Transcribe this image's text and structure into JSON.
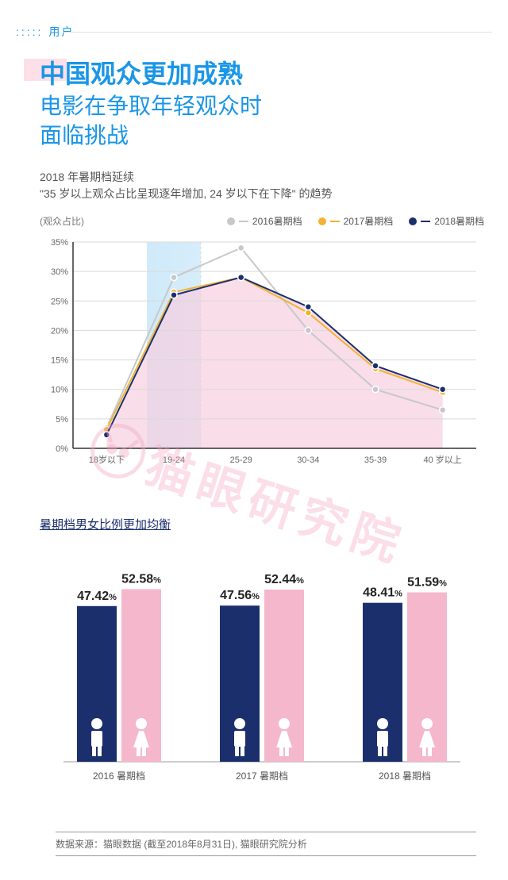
{
  "section_tag": "用户",
  "title": {
    "line1": "中国观众更加成熟",
    "line2": "电影在争取年轻观众时",
    "line3": "面临挑战"
  },
  "line_chart": {
    "desc1": "2018 年暑期档延续",
    "desc2": "\"35 岁以上观众占比呈现逐年增加, 24 岁以下在下降\" 的趋势",
    "ylabel": "(观众占比)",
    "categories": [
      "18岁以下",
      "19-24",
      "25-29",
      "30-34",
      "35-39",
      "40 岁以上"
    ],
    "ylim": [
      0,
      35
    ],
    "ytick_step": 5,
    "ytick_suffix": "%",
    "series": [
      {
        "name": "2016暑期档",
        "color": "#c8c8c8",
        "points": [
          3.5,
          29,
          34,
          20,
          10,
          6.5
        ]
      },
      {
        "name": "2017暑期档",
        "color": "#f4b233",
        "points": [
          3.2,
          26.5,
          29,
          23,
          13.5,
          9.5
        ]
      },
      {
        "name": "2018暑期档",
        "color": "#1c2f6d",
        "points": [
          2.3,
          26,
          29,
          24,
          14,
          10
        ]
      }
    ],
    "fill_color": "#f7cfe0",
    "highlight_band": {
      "center_index": 1,
      "color_from": "#cfeaf9",
      "color_to": "#d7edfb"
    },
    "grid_color": "#d9d9d9",
    "axis_color": "#333333",
    "tick_font_color": "#666666",
    "tick_fontsize": 11
  },
  "bar_chart": {
    "title": "暑期档男女比例更加均衡",
    "categories": [
      "2016 暑期档",
      "2017 暑期档",
      "2018 暑期档"
    ],
    "male": {
      "values": [
        47.42,
        47.56,
        48.41
      ],
      "color": "#1c2f6d"
    },
    "female": {
      "values": [
        52.58,
        52.44,
        51.59
      ],
      "color": "#f4b7cc"
    },
    "axis_color": "#999999",
    "tick_fontsize": 12,
    "tick_color": "#555555",
    "value_suffix": "%",
    "value_fontsize": 16,
    "ymax": 58
  },
  "watermark": "猫眼研究院",
  "source": "数据来源：猫眼数据 (截至2018年8月31日), 猫眼研究院分析"
}
